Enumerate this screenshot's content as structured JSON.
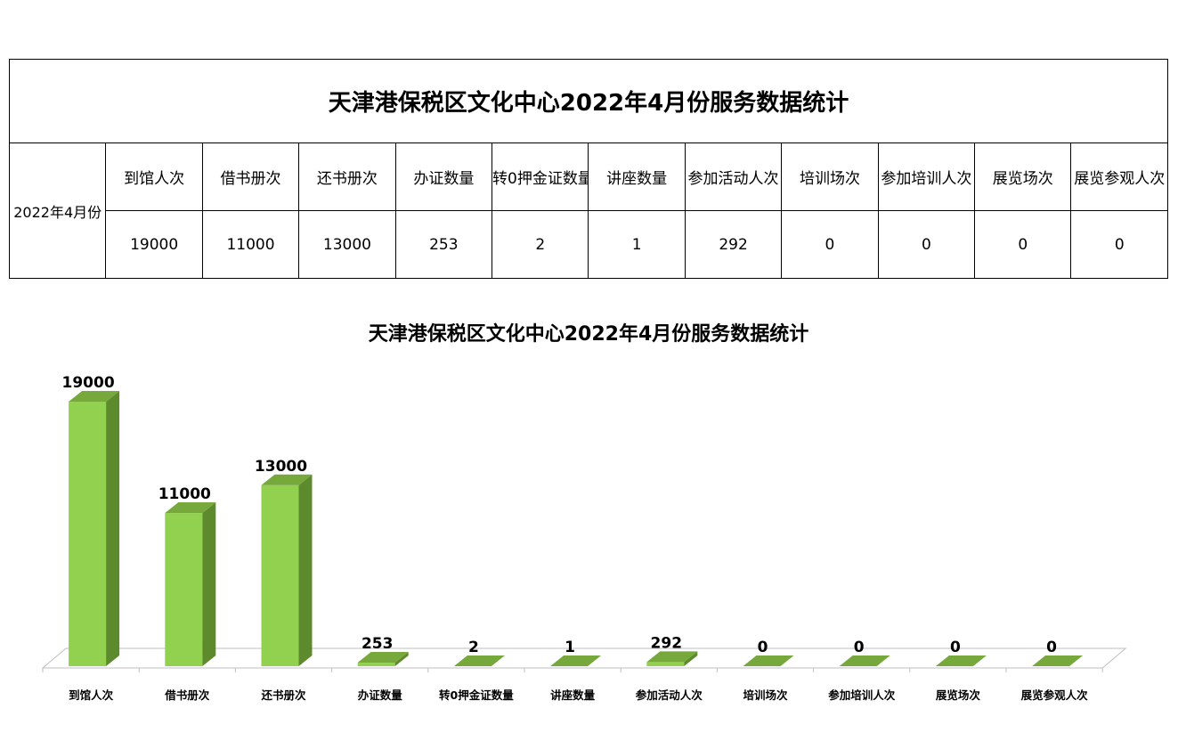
{
  "table": {
    "title": "天津港保税区文化中心2022年4月份服务数据统计",
    "period": "2022年4月份",
    "headers": [
      "到馆人次",
      "借书册次",
      "还书册次",
      "办证数量",
      "转0押金证数量",
      "讲座数量",
      "参加活动人次",
      "培训场次",
      "参加培训人次",
      "展览场次",
      "展览参观人次"
    ],
    "values": [
      "19000",
      "11000",
      "13000",
      "253",
      "2",
      "1",
      "292",
      "0",
      "0",
      "0",
      "0"
    ]
  },
  "chart_data": {
    "type": "bar",
    "title": "天津港保税区文化中心2022年4月份服务数据统计",
    "categories": [
      "到馆人次",
      "借书册次",
      "还书册次",
      "办证数量",
      "转0押金证数量",
      "讲座数量",
      "参加活动人次",
      "培训场次",
      "参加培训人次",
      "展览场次",
      "展览参观人次"
    ],
    "values": [
      19000,
      11000,
      13000,
      253,
      2,
      1,
      292,
      0,
      0,
      0,
      0
    ],
    "data_labels": [
      "19000",
      "11000",
      "13000",
      "253",
      "2",
      "1",
      "292",
      "0",
      "0",
      "0",
      "0"
    ],
    "ylim": [
      0,
      20000
    ],
    "style": "3d-column",
    "grid": false,
    "legend": "none",
    "colors": {
      "front": "#92d050",
      "side": "#5e8a2e",
      "top": "#76a83c",
      "floor_stroke": "#bfbfbf"
    }
  }
}
